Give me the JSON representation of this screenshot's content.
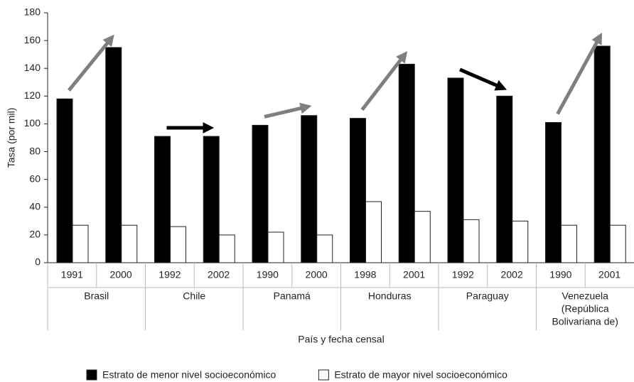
{
  "chart_data": {
    "type": "bar",
    "y_label": "Tasa (por mil)",
    "x_label": "País y fecha censal",
    "categories": [
      "1991",
      "2000",
      "1992",
      "2002",
      "1990",
      "2000",
      "1998",
      "2001",
      "1992",
      "2002",
      "1990",
      "2001"
    ],
    "groups": [
      [
        "Brasil"
      ],
      [
        "Chile"
      ],
      [
        "Panamá"
      ],
      [
        "Honduras"
      ],
      [
        "Paraguay"
      ],
      [
        "Venezuela",
        "(República",
        "Bolivariana de)"
      ]
    ],
    "series": [
      {
        "name": "Estrato de menor nivel socioeconómico",
        "color": "#000000",
        "values": [
          118,
          155,
          91,
          91,
          99,
          106,
          104,
          143,
          133,
          120,
          101,
          156
        ]
      },
      {
        "name": "Estrato de mayor nivel socioeconómico",
        "color": "#ffffff",
        "values": [
          27,
          27,
          26,
          20,
          22,
          20,
          44,
          37,
          31,
          30,
          27,
          27
        ]
      }
    ],
    "ylim": [
      0,
      180
    ],
    "yticks": [
      0,
      20,
      40,
      60,
      80,
      100,
      120,
      140,
      160,
      180
    ],
    "legend": "bottom"
  }
}
